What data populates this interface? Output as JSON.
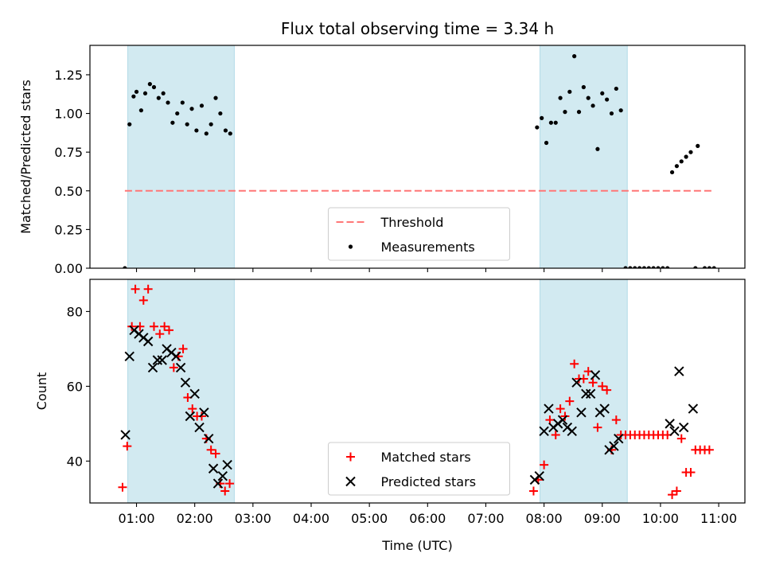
{
  "chart_data": {
    "type": "scatter",
    "title": "Flux total observing time = 3.34 h",
    "xlabel": "Time (UTC)",
    "x_unit": "hours UTC",
    "xlim": [
      0.2,
      11.45
    ],
    "xticks": [
      {
        "value": 1,
        "label": "01:00"
      },
      {
        "value": 2,
        "label": "02:00"
      },
      {
        "value": 3,
        "label": "03:00"
      },
      {
        "value": 4,
        "label": "04:00"
      },
      {
        "value": 5,
        "label": "05:00"
      },
      {
        "value": 6,
        "label": "06:00"
      },
      {
        "value": 7,
        "label": "07:00"
      },
      {
        "value": 8,
        "label": "08:00"
      },
      {
        "value": 9,
        "label": "09:00"
      },
      {
        "value": 10,
        "label": "10:00"
      },
      {
        "value": 11,
        "label": "11:00"
      }
    ],
    "shaded_spans": [
      [
        0.85,
        2.68
      ],
      [
        7.93,
        9.43
      ]
    ],
    "shade_color": "#add8e6",
    "panels": [
      {
        "id": "ratio",
        "ylabel": "Matched/Predicted stars",
        "ylim": [
          0,
          1.44
        ],
        "yticks": [
          {
            "value": 0,
            "label": "0.00"
          },
          {
            "value": 0.25,
            "label": "0.25"
          },
          {
            "value": 0.5,
            "label": "0.50"
          },
          {
            "value": 0.75,
            "label": "0.75"
          },
          {
            "value": 1.0,
            "label": "1.00"
          },
          {
            "value": 1.25,
            "label": "1.25"
          }
        ],
        "legend_position": "bottom-center",
        "threshold": {
          "name": "Threshold",
          "y": 0.5,
          "x_range": [
            0.8,
            10.92
          ],
          "color": "#ff7777"
        },
        "series": [
          {
            "name": "Measurements",
            "marker": "dot",
            "color": "#000000",
            "points": [
              [
                0.8,
                0.0
              ],
              [
                0.88,
                0.93
              ],
              [
                0.95,
                1.11
              ],
              [
                1.0,
                1.14
              ],
              [
                1.08,
                1.02
              ],
              [
                1.15,
                1.13
              ],
              [
                1.23,
                1.19
              ],
              [
                1.3,
                1.17
              ],
              [
                1.38,
                1.1
              ],
              [
                1.46,
                1.13
              ],
              [
                1.54,
                1.07
              ],
              [
                1.62,
                0.94
              ],
              [
                1.7,
                1.0
              ],
              [
                1.79,
                1.07
              ],
              [
                1.87,
                0.93
              ],
              [
                1.95,
                1.03
              ],
              [
                2.03,
                0.89
              ],
              [
                2.12,
                1.05
              ],
              [
                2.2,
                0.87
              ],
              [
                2.28,
                0.93
              ],
              [
                2.36,
                1.1
              ],
              [
                2.44,
                1.0
              ],
              [
                2.53,
                0.89
              ],
              [
                2.61,
                0.87
              ],
              [
                7.88,
                0.91
              ],
              [
                7.96,
                0.97
              ],
              [
                8.04,
                0.81
              ],
              [
                8.12,
                0.94
              ],
              [
                8.2,
                0.94
              ],
              [
                8.28,
                1.1
              ],
              [
                8.36,
                1.01
              ],
              [
                8.44,
                1.14
              ],
              [
                8.52,
                1.37
              ],
              [
                8.6,
                1.01
              ],
              [
                8.68,
                1.17
              ],
              [
                8.76,
                1.1
              ],
              [
                8.84,
                1.05
              ],
              [
                8.92,
                0.77
              ],
              [
                9.0,
                1.13
              ],
              [
                9.08,
                1.09
              ],
              [
                9.16,
                1.0
              ],
              [
                9.24,
                1.16
              ],
              [
                9.32,
                1.02
              ],
              [
                9.4,
                0.0
              ],
              [
                9.48,
                0.0
              ],
              [
                9.56,
                0.0
              ],
              [
                9.64,
                0.0
              ],
              [
                9.72,
                0.0
              ],
              [
                9.8,
                0.0
              ],
              [
                9.88,
                0.0
              ],
              [
                9.96,
                0.0
              ],
              [
                10.04,
                0.0
              ],
              [
                10.12,
                0.0
              ],
              [
                10.2,
                0.62
              ],
              [
                10.28,
                0.66
              ],
              [
                10.36,
                0.69
              ],
              [
                10.44,
                0.72
              ],
              [
                10.52,
                0.75
              ],
              [
                10.64,
                0.79
              ],
              [
                10.6,
                0.0
              ],
              [
                10.76,
                0.0
              ],
              [
                10.84,
                0.0
              ],
              [
                10.92,
                0.0
              ]
            ]
          }
        ]
      },
      {
        "id": "count",
        "ylabel": "Count",
        "ylim": [
          28.8,
          88.6
        ],
        "yticks": [
          {
            "value": 40,
            "label": "40"
          },
          {
            "value": 60,
            "label": "60"
          },
          {
            "value": 80,
            "label": "80"
          }
        ],
        "legend_position": "bottom-center",
        "series": [
          {
            "name": "Matched stars",
            "marker": "plus",
            "color": "#ff0000",
            "points": [
              [
                0.76,
                33
              ],
              [
                0.84,
                44
              ],
              [
                0.92,
                76
              ],
              [
                0.98,
                86
              ],
              [
                1.06,
                76
              ],
              [
                1.12,
                83
              ],
              [
                1.2,
                86
              ],
              [
                1.3,
                76
              ],
              [
                1.4,
                74
              ],
              [
                1.48,
                76
              ],
              [
                1.56,
                75
              ],
              [
                1.64,
                65
              ],
              [
                1.72,
                68
              ],
              [
                1.8,
                70
              ],
              [
                1.88,
                57
              ],
              [
                1.96,
                54
              ],
              [
                2.04,
                52
              ],
              [
                2.12,
                52
              ],
              [
                2.2,
                46
              ],
              [
                2.28,
                43
              ],
              [
                2.36,
                42
              ],
              [
                2.44,
                34
              ],
              [
                2.52,
                32
              ],
              [
                2.6,
                34
              ],
              [
                7.82,
                32
              ],
              [
                7.9,
                35
              ],
              [
                8.0,
                39
              ],
              [
                8.1,
                51
              ],
              [
                8.2,
                47
              ],
              [
                8.28,
                54
              ],
              [
                8.36,
                52
              ],
              [
                8.44,
                56
              ],
              [
                8.52,
                66
              ],
              [
                8.6,
                62
              ],
              [
                8.68,
                62
              ],
              [
                8.76,
                64
              ],
              [
                8.84,
                61
              ],
              [
                8.92,
                49
              ],
              [
                9.0,
                60
              ],
              [
                9.08,
                59
              ],
              [
                9.16,
                43
              ],
              [
                9.24,
                51
              ],
              [
                9.32,
                47
              ],
              [
                9.4,
                47
              ],
              [
                9.48,
                47
              ],
              [
                9.56,
                47
              ],
              [
                9.64,
                47
              ],
              [
                9.72,
                47
              ],
              [
                9.8,
                47
              ],
              [
                9.88,
                47
              ],
              [
                9.96,
                47
              ],
              [
                10.04,
                47
              ],
              [
                10.12,
                47
              ],
              [
                10.2,
                31
              ],
              [
                10.28,
                32
              ],
              [
                10.36,
                46
              ],
              [
                10.44,
                37
              ],
              [
                10.52,
                37
              ],
              [
                10.6,
                43
              ],
              [
                10.68,
                43
              ],
              [
                10.76,
                43
              ],
              [
                10.84,
                43
              ]
            ]
          },
          {
            "name": "Predicted stars",
            "marker": "x",
            "color": "#000000",
            "points": [
              [
                0.81,
                47
              ],
              [
                0.88,
                68
              ],
              [
                0.96,
                75
              ],
              [
                1.04,
                74
              ],
              [
                1.12,
                73
              ],
              [
                1.2,
                72
              ],
              [
                1.28,
                65
              ],
              [
                1.36,
                67
              ],
              [
                1.44,
                67
              ],
              [
                1.52,
                70
              ],
              [
                1.6,
                69
              ],
              [
                1.68,
                68
              ],
              [
                1.76,
                65
              ],
              [
                1.84,
                61
              ],
              [
                1.92,
                52
              ],
              [
                2.0,
                58
              ],
              [
                2.08,
                49
              ],
              [
                2.16,
                53
              ],
              [
                2.24,
                46
              ],
              [
                2.32,
                38
              ],
              [
                2.4,
                34
              ],
              [
                2.48,
                36
              ],
              [
                2.56,
                39
              ],
              [
                7.84,
                35
              ],
              [
                7.92,
                36
              ],
              [
                8.0,
                48
              ],
              [
                8.08,
                54
              ],
              [
                8.16,
                49
              ],
              [
                8.24,
                50
              ],
              [
                8.32,
                51
              ],
              [
                8.4,
                49
              ],
              [
                8.48,
                48
              ],
              [
                8.56,
                61
              ],
              [
                8.64,
                53
              ],
              [
                8.72,
                58
              ],
              [
                8.8,
                58
              ],
              [
                8.88,
                63
              ],
              [
                8.96,
                53
              ],
              [
                9.04,
                54
              ],
              [
                9.12,
                43
              ],
              [
                9.2,
                44
              ],
              [
                9.28,
                46
              ],
              [
                10.16,
                50
              ],
              [
                10.24,
                48
              ],
              [
                10.32,
                64
              ],
              [
                10.4,
                49
              ],
              [
                10.56,
                54
              ]
            ]
          }
        ]
      }
    ]
  }
}
